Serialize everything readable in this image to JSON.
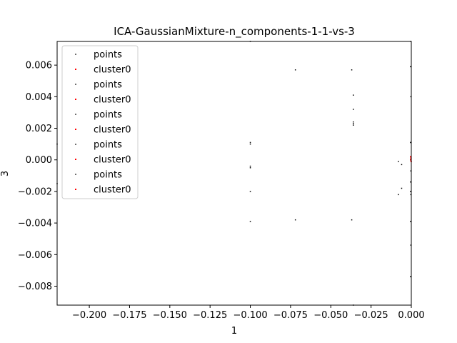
{
  "chart_data": {
    "type": "scatter",
    "title": "ICA-GaussianMixture-n_components-1-1-vs-3",
    "xlabel": "1",
    "ylabel": "3",
    "xlim": [
      -0.22,
      0.0
    ],
    "ylim": [
      -0.0092,
      0.0075
    ],
    "grid": false,
    "legend_placement": "top-left",
    "x_ticks": [
      -0.2,
      -0.175,
      -0.15,
      -0.125,
      -0.1,
      -0.075,
      -0.05,
      -0.025,
      0.0
    ],
    "x_tick_labels": [
      "−0.200",
      "−0.175",
      "−0.150",
      "−0.125",
      "−0.100",
      "−0.075",
      "−0.050",
      "−0.025",
      "0.000"
    ],
    "y_ticks": [
      0.006,
      0.004,
      0.002,
      0.0,
      -0.002,
      -0.004,
      -0.006,
      -0.008
    ],
    "y_tick_labels": [
      "0.006",
      "0.004",
      "0.002",
      "0.000",
      "−0.002",
      "−0.004",
      "−0.006",
      "−0.008"
    ],
    "legend": [
      {
        "label": "points",
        "color": "#000000"
      },
      {
        "label": "cluster0",
        "color": "#ff0000"
      },
      {
        "label": "points",
        "color": "#000000"
      },
      {
        "label": "cluster0",
        "color": "#ff0000"
      },
      {
        "label": "points",
        "color": "#000000"
      },
      {
        "label": "cluster0",
        "color": "#ff0000"
      },
      {
        "label": "points",
        "color": "#000000"
      },
      {
        "label": "cluster0",
        "color": "#ff0000"
      },
      {
        "label": "points",
        "color": "#000000"
      },
      {
        "label": "cluster0",
        "color": "#ff0000"
      }
    ],
    "series": [
      {
        "color": "#000000",
        "points": [
          [
            -0.22,
            0.001
          ],
          [
            -0.22,
            -0.0015
          ],
          [
            -0.1,
            0.0075
          ],
          [
            -0.1,
            0.0011
          ],
          [
            -0.1,
            0.001
          ],
          [
            -0.1,
            -0.0004
          ],
          [
            -0.1,
            -0.0005
          ],
          [
            -0.1,
            -0.002
          ],
          [
            -0.1,
            -0.0039
          ],
          [
            -0.072,
            0.0057
          ],
          [
            -0.072,
            -0.0038
          ],
          [
            -0.037,
            0.0057
          ],
          [
            -0.036,
            0.0041
          ],
          [
            -0.036,
            0.0032
          ],
          [
            -0.036,
            0.0024
          ],
          [
            -0.036,
            0.0023
          ],
          [
            -0.036,
            0.0022
          ],
          [
            -0.037,
            -0.0038
          ],
          [
            -0.036,
            -0.0092
          ],
          [
            -0.008,
            -0.0001
          ],
          [
            -0.006,
            -0.0003
          ],
          [
            -0.006,
            -0.0018
          ],
          [
            -0.008,
            -0.0022
          ],
          [
            -0.0005,
            0.0059
          ],
          [
            -0.0003,
            0.004
          ],
          [
            -0.0005,
            0.0011
          ],
          [
            -0.0003,
            0.0011
          ],
          [
            -0.0002,
            0.0002
          ],
          [
            -0.0005,
            0.0
          ],
          [
            -0.0003,
            -0.0007
          ],
          [
            -0.0005,
            -0.0014
          ],
          [
            -0.0005,
            -0.002
          ],
          [
            -0.0003,
            -0.0022
          ],
          [
            -0.0005,
            -0.0039
          ],
          [
            -0.0003,
            -0.0054
          ],
          [
            -0.0005,
            -0.0074
          ],
          [
            -0.0003,
            0.0075
          ]
        ]
      },
      {
        "color": "#ff0000",
        "points": [
          [
            -0.0002,
            0.0001
          ],
          [
            -0.0003,
            0.0
          ],
          [
            -0.0001,
            -0.0001
          ],
          [
            -0.0004,
            0.0002
          ]
        ]
      }
    ]
  }
}
